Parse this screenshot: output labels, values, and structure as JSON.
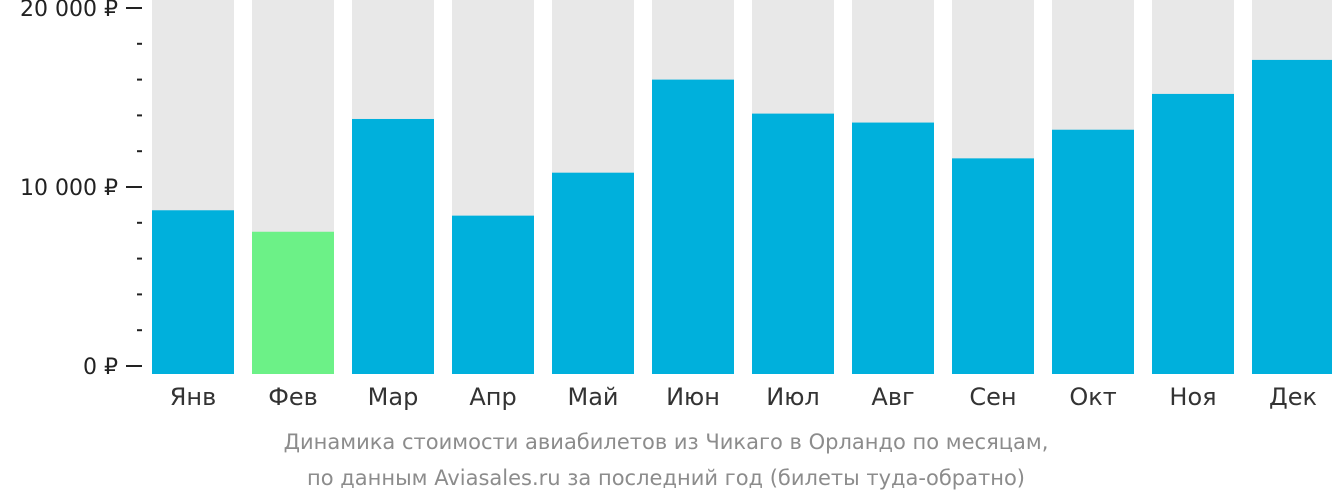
{
  "chart_data": {
    "type": "bar",
    "categories": [
      "Янв",
      "Фев",
      "Мар",
      "Апр",
      "Май",
      "Июн",
      "Июл",
      "Авг",
      "Сен",
      "Окт",
      "Ноя",
      "Дек"
    ],
    "values": [
      8700,
      7500,
      13800,
      8400,
      10800,
      16000,
      14100,
      13600,
      11600,
      13200,
      15200,
      17100
    ],
    "highlight_index": 1,
    "ylim": [
      0,
      20000
    ],
    "yticks": [
      {
        "value": 0,
        "label": "0 ₽"
      },
      {
        "value": 10000,
        "label": "10 000 ₽"
      },
      {
        "value": 20000,
        "label": "20 000 ₽"
      }
    ],
    "minor_tick_step": 2000,
    "colors": {
      "bar": "#00b0dc",
      "highlight": "#6cf187",
      "background_bar": "#e8e8e8",
      "axis": "#222222"
    },
    "caption_line1": "Динамика стоимости авиабилетов из Чикаго в Орландо по месяцам,",
    "caption_line2": "по данным Aviasales.ru за последний год (билеты туда-обратно)"
  }
}
